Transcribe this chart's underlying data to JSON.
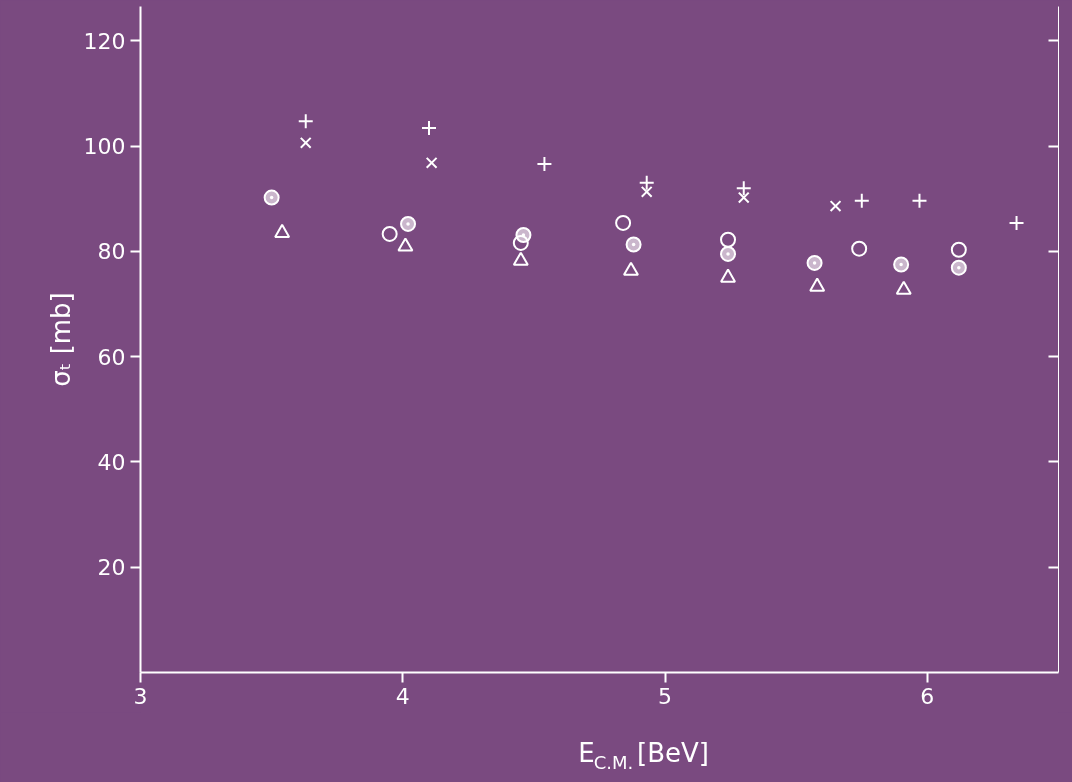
{
  "chart_data": {
    "type": "scatter",
    "xlabel": "E$_{C.M.}$[BeV]",
    "ylabel": "σₜ [mb]",
    "xlim": [
      3,
      6.5
    ],
    "ylim": [
      0,
      126.5
    ],
    "xticks": [
      3,
      4,
      5,
      6
    ],
    "yticks": [
      20,
      40,
      60,
      80,
      100,
      120
    ],
    "grid": false,
    "series": [
      {
        "marker": "cross",
        "color": "#ffffff",
        "x": [
          3.63,
          4.1,
          4.54,
          4.93,
          5.3,
          5.75,
          5.97,
          6.34
        ],
        "values": [
          104.7,
          103.4,
          96.6,
          93,
          92,
          89.6,
          89.6,
          85.4
        ]
      },
      {
        "marker": "x",
        "color": "#ffffff",
        "x": [
          3.63,
          4.11,
          4.93,
          5.3,
          5.65
        ],
        "values": [
          100.6,
          96.8,
          91.3,
          90.2,
          88.6
        ]
      },
      {
        "marker": "circle",
        "color": "#ffffff",
        "x": [
          3.95,
          4.45,
          4.84,
          5.24,
          5.74,
          6.12
        ],
        "values": [
          83.3,
          81.6,
          85.4,
          82.2,
          80.5,
          80.3
        ]
      },
      {
        "marker": "circle_dot",
        "color": "#ffffff",
        "x": [
          3.5,
          4.02,
          4.46,
          4.88,
          5.24,
          5.57,
          5.9,
          6.12
        ],
        "values": [
          90.2,
          85.2,
          83.1,
          81.3,
          79.5,
          77.8,
          77.5,
          76.9
        ]
      },
      {
        "marker": "triangle",
        "color": "#ffffff",
        "x": [
          3.54,
          4.01,
          4.45,
          4.87,
          5.24,
          5.58,
          5.91
        ],
        "values": [
          83.5,
          80.9,
          78.2,
          76.3,
          75.0,
          73.3,
          72.7
        ]
      }
    ]
  }
}
